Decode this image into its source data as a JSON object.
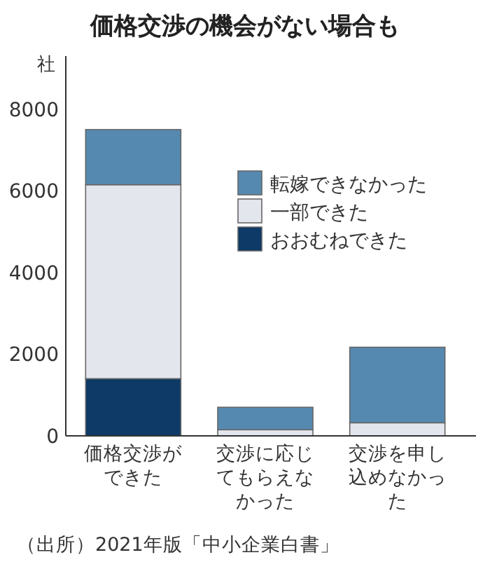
{
  "chart_data": {
    "type": "bar",
    "title": "価格交渉の機会がない場合も",
    "ylabel": "社",
    "categories": [
      "価格交渉ができた",
      "交渉に応じてもらえなかった",
      "交渉を申し込めなかった"
    ],
    "stacked": true,
    "series": [
      {
        "name": "おおむねできた",
        "color": "#0d3a66",
        "values": [
          1400,
          0,
          0
        ]
      },
      {
        "name": "一部できた",
        "color": "#e4e6ee",
        "values": [
          4750,
          150,
          320
        ]
      },
      {
        "name": "転嫁できなかった",
        "color": "#5589b0",
        "values": [
          1350,
          550,
          1850
        ]
      }
    ],
    "ylim": [
      0,
      9300
    ],
    "yticks": [
      0,
      2000,
      4000,
      6000,
      8000
    ],
    "grid": false,
    "legend": "right",
    "annotations": [
      "（出所）2021年版「中小企業白書」"
    ]
  }
}
